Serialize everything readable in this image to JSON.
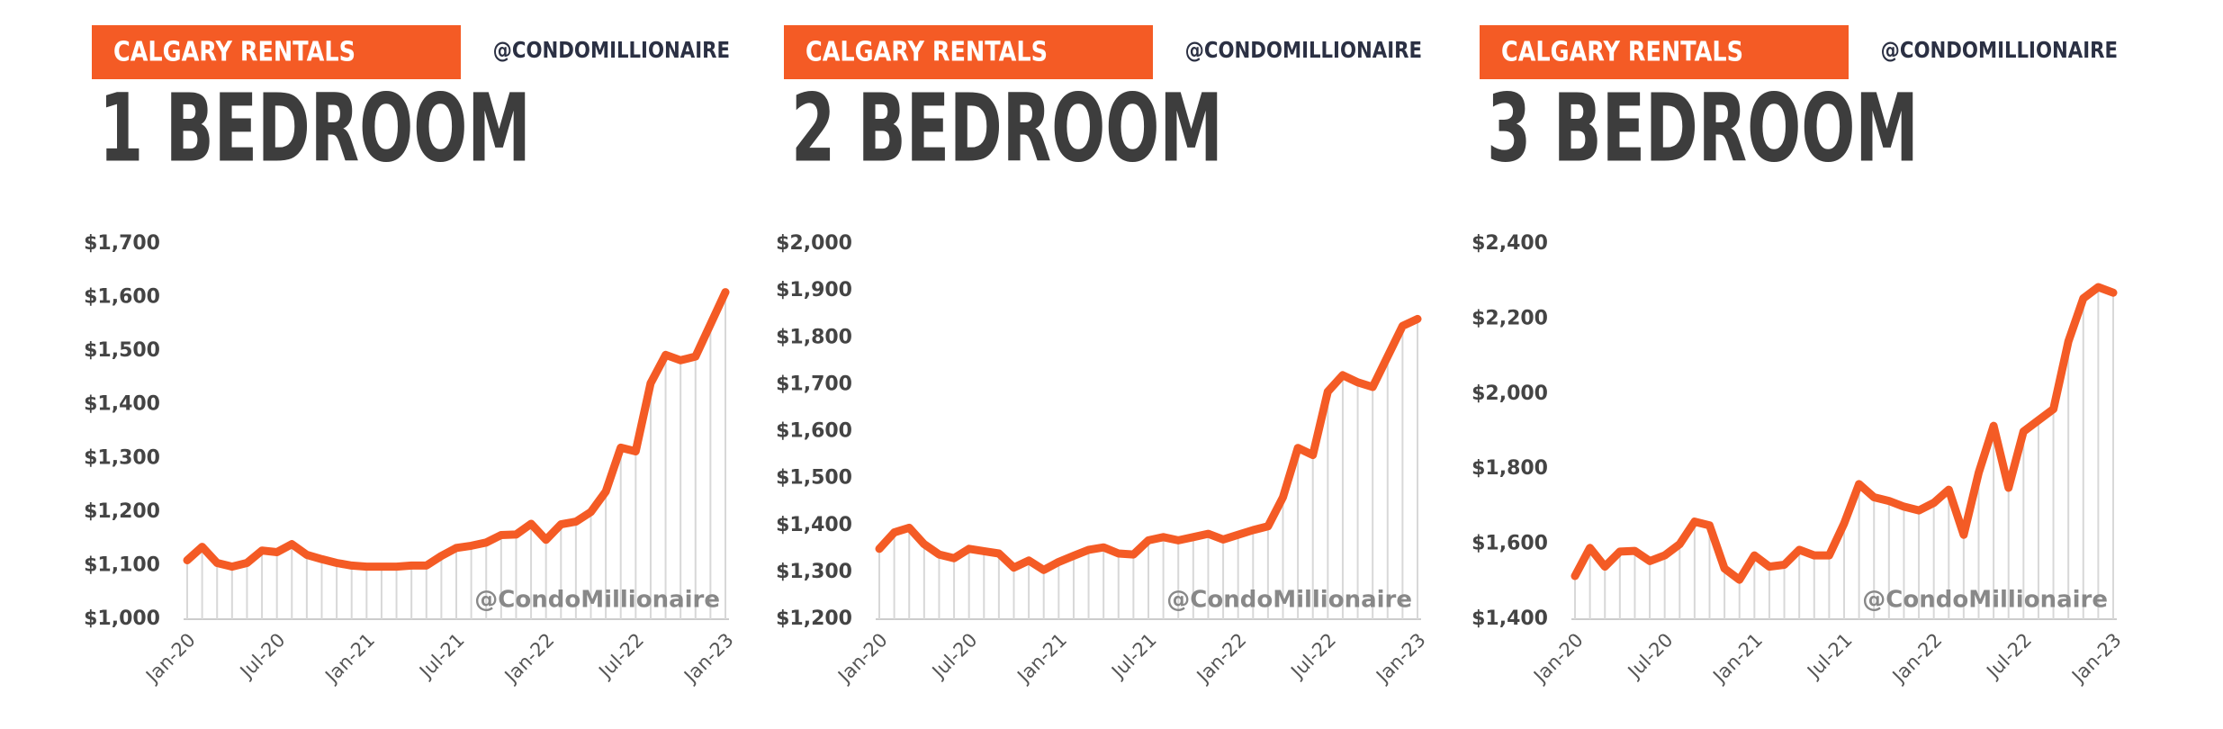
{
  "chart_data": [
    {
      "type": "line",
      "header": "CALGARY RENTALS",
      "handle": "@CONDOMILLIONAIRE",
      "title": "1 BEDROOM",
      "watermark": "@CondoMillionaire",
      "color": "#f45b25",
      "categories": [
        "Jan-20",
        null,
        null,
        null,
        null,
        null,
        "Jul-20",
        null,
        null,
        null,
        null,
        null,
        "Jan-21",
        null,
        null,
        null,
        null,
        null,
        "Jul-21",
        null,
        null,
        null,
        null,
        null,
        "Jan-22",
        null,
        null,
        null,
        null,
        null,
        "Jul-22",
        null,
        null,
        null,
        null,
        null,
        "Jan-23"
      ],
      "values": [
        1110,
        1135,
        1105,
        1098,
        1105,
        1128,
        1125,
        1140,
        1120,
        1112,
        1105,
        1100,
        1098,
        1098,
        1098,
        1100,
        1100,
        1118,
        1133,
        1137,
        1143,
        1157,
        1158,
        1178,
        1148,
        1177,
        1182,
        1200,
        1238,
        1320,
        1313,
        1440,
        1493,
        1483,
        1490,
        1550,
        1610
      ],
      "ylim": [
        1000,
        1700
      ],
      "yticks": [
        {
          "value": 1000,
          "label": "$1,000"
        },
        {
          "value": 1100,
          "label": "$1,100"
        },
        {
          "value": 1200,
          "label": "$1,200"
        },
        {
          "value": 1300,
          "label": "$1,300"
        },
        {
          "value": 1400,
          "label": "$1,400"
        },
        {
          "value": 1500,
          "label": "$1,500"
        },
        {
          "value": 1600,
          "label": "$1,600"
        },
        {
          "value": 1700,
          "label": "$1,700"
        }
      ]
    },
    {
      "type": "line",
      "header": "CALGARY RENTALS",
      "handle": "@CONDOMILLIONAIRE",
      "title": "2 BEDROOM",
      "watermark": "@CondoMillionaire",
      "color": "#f45b25",
      "categories": [
        "Jan-20",
        null,
        null,
        null,
        null,
        null,
        "Jul-20",
        null,
        null,
        null,
        null,
        null,
        "Jan-21",
        null,
        null,
        null,
        null,
        null,
        "Jul-21",
        null,
        null,
        null,
        null,
        null,
        "Jan-22",
        null,
        null,
        null,
        null,
        null,
        "Jul-22",
        null,
        null,
        null,
        null,
        null,
        "Jan-23"
      ],
      "values": [
        1350,
        1385,
        1395,
        1360,
        1338,
        1330,
        1350,
        1345,
        1340,
        1310,
        1325,
        1305,
        1322,
        1335,
        1348,
        1353,
        1340,
        1338,
        1368,
        1375,
        1368,
        1375,
        1382,
        1370,
        1380,
        1390,
        1398,
        1460,
        1565,
        1550,
        1685,
        1720,
        1705,
        1695,
        1760,
        1825,
        1840
      ],
      "ylim": [
        1200,
        2000
      ],
      "yticks": [
        {
          "value": 1200,
          "label": "$1,200"
        },
        {
          "value": 1300,
          "label": "$1,300"
        },
        {
          "value": 1400,
          "label": "$1,400"
        },
        {
          "value": 1500,
          "label": "$1,500"
        },
        {
          "value": 1600,
          "label": "$1,600"
        },
        {
          "value": 1700,
          "label": "$1,700"
        },
        {
          "value": 1800,
          "label": "$1,800"
        },
        {
          "value": 1900,
          "label": "$1,900"
        },
        {
          "value": 2000,
          "label": "$2,000"
        }
      ]
    },
    {
      "type": "line",
      "header": "CALGARY RENTALS",
      "handle": "@CONDOMILLIONAIRE",
      "title": "3 BEDROOM",
      "watermark": "@CondoMillionaire",
      "color": "#f45b25",
      "categories": [
        "Jan-20",
        null,
        null,
        null,
        null,
        null,
        "Jul-20",
        null,
        null,
        null,
        null,
        null,
        "Jan-21",
        null,
        null,
        null,
        null,
        null,
        "Jul-21",
        null,
        null,
        null,
        null,
        null,
        "Jan-22",
        null,
        null,
        null,
        null,
        null,
        "Jul-22",
        null,
        null,
        null,
        null,
        null,
        "Jan-23"
      ],
      "values": [
        1515,
        1590,
        1540,
        1580,
        1582,
        1555,
        1570,
        1600,
        1660,
        1650,
        1535,
        1505,
        1570,
        1540,
        1545,
        1585,
        1570,
        1570,
        1655,
        1760,
        1725,
        1715,
        1700,
        1690,
        1710,
        1745,
        1625,
        1790,
        1915,
        1750,
        1900,
        1930,
        1960,
        2140,
        2255,
        2285,
        2270
      ],
      "ylim": [
        1400,
        2400
      ],
      "yticks": [
        {
          "value": 1400,
          "label": "$1,400"
        },
        {
          "value": 1600,
          "label": "$1,600"
        },
        {
          "value": 1800,
          "label": "$1,800"
        },
        {
          "value": 2000,
          "label": "$2,000"
        },
        {
          "value": 2200,
          "label": "$2,200"
        },
        {
          "value": 2400,
          "label": "$2,400"
        }
      ]
    }
  ]
}
